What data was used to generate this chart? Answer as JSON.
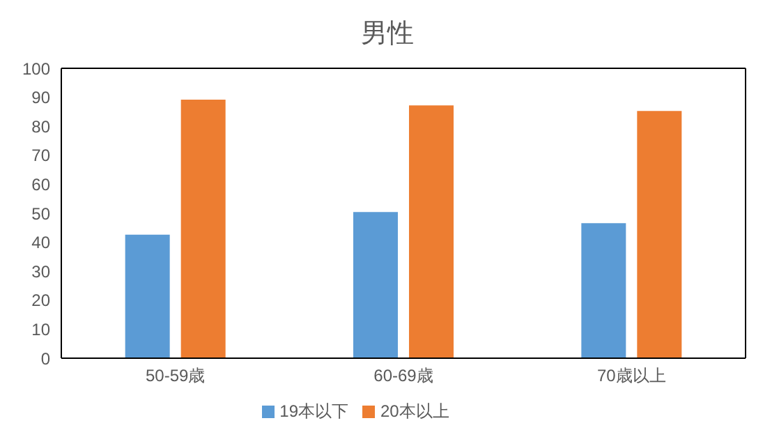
{
  "chart_data": {
    "type": "bar",
    "title": "男性",
    "categories": [
      "50-59歳",
      "60-69歳",
      "70歳以上"
    ],
    "series": [
      {
        "name": "19本以下",
        "color": "#5b9bd5",
        "values": [
          42.6,
          50.4,
          46.6
        ]
      },
      {
        "name": "20本以上",
        "color": "#ed7d31",
        "values": [
          89.2,
          87.2,
          85.3
        ]
      }
    ],
    "ylim": [
      0,
      100
    ],
    "yticks": [
      0,
      10,
      20,
      30,
      40,
      50,
      60,
      70,
      80,
      90,
      100
    ],
    "grid": false,
    "legend": "bottom"
  }
}
